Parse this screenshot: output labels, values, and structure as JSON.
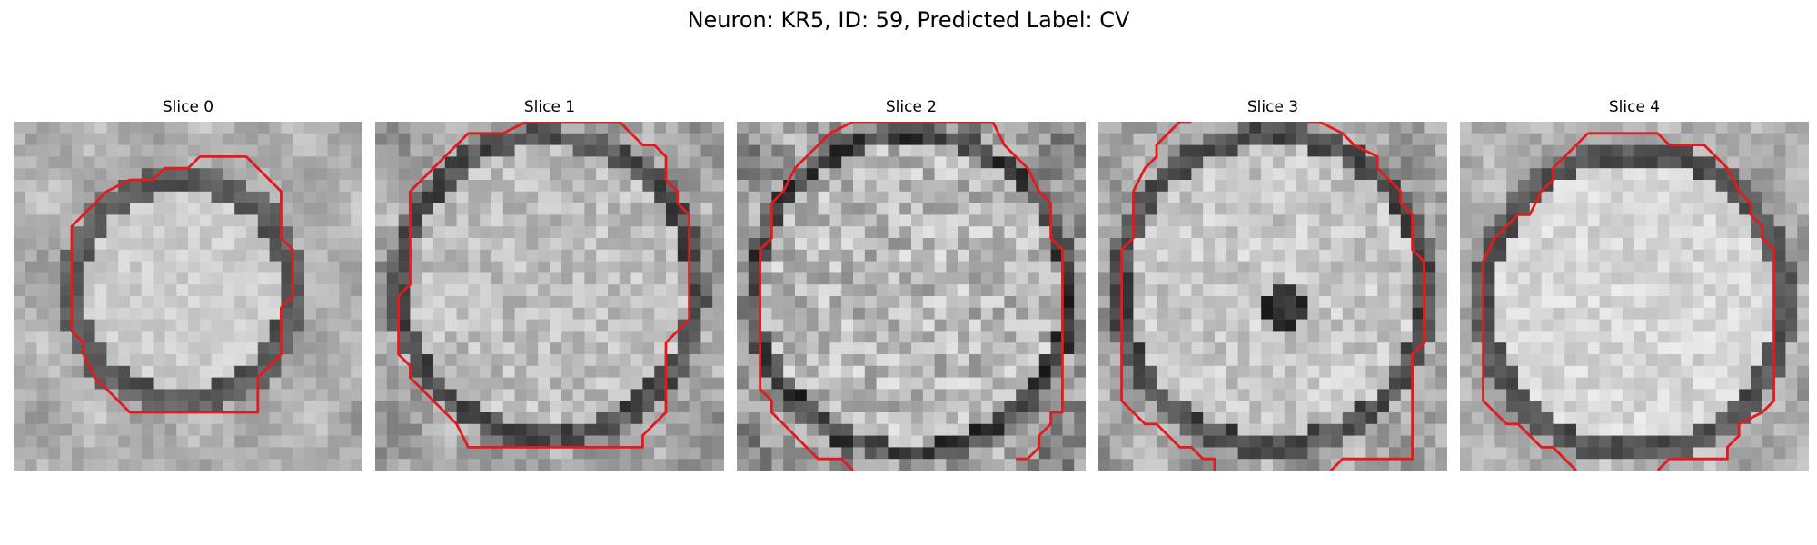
{
  "figure": {
    "title": "Neuron: KR5, ID: 59, Predicted Label: CV",
    "contour_color": "#e41a1c",
    "colormap": "grayscale",
    "panels": [
      {
        "title": "Slice 0"
      },
      {
        "title": "Slice 1"
      },
      {
        "title": "Slice 2"
      },
      {
        "title": "Slice 3"
      },
      {
        "title": "Slice 4"
      }
    ]
  }
}
